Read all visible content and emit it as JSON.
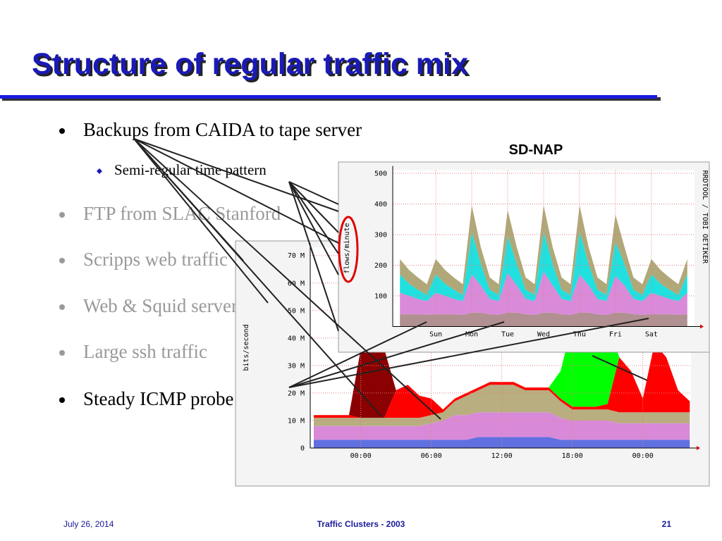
{
  "title": "Structure of regular traffic mix",
  "bullets": [
    {
      "text": "Backups from CAIDA to tape server",
      "sub": "Semi-regular time pattern"
    },
    {
      "text": "FTP from SLAC Stanford"
    },
    {
      "text": "Scripps web traffic"
    },
    {
      "text": "Web & Squid servers"
    },
    {
      "text": "Large ssh traffic"
    },
    {
      "text": "Steady ICMP probe"
    }
  ],
  "footer": {
    "date": "July 26, 2014",
    "center": "Traffic Clusters -  2003",
    "page": "21"
  },
  "chart_data": [
    {
      "type": "area",
      "title": "SD-NAP",
      "y_label": "flows/minute",
      "credit": "RRDTOOL / TOBI OETIKER",
      "x": [
        -0.5,
        -0.25,
        0,
        0.25,
        0.5,
        0.75,
        1,
        1.25,
        1.5,
        1.75,
        2,
        2.25,
        2.5,
        2.75,
        3,
        3.25,
        3.5,
        3.75,
        4,
        4.25,
        4.5,
        4.75,
        5,
        5.25,
        5.5,
        5.75,
        6,
        6.25,
        6.5,
        6.75,
        7,
        7.25,
        7.5
      ],
      "series": [
        {
          "color": "#b09090",
          "values": [
            40,
            40,
            40,
            38,
            40,
            40,
            40,
            38,
            45,
            45,
            40,
            38,
            45,
            45,
            40,
            38,
            45,
            45,
            40,
            38,
            45,
            45,
            40,
            38,
            45,
            45,
            40,
            38,
            40,
            40,
            40,
            38,
            40
          ]
        },
        {
          "color": "#d98ad9",
          "values": [
            70,
            60,
            50,
            45,
            70,
            60,
            50,
            45,
            125,
            90,
            50,
            45,
            130,
            90,
            50,
            45,
            135,
            90,
            50,
            45,
            125,
            90,
            50,
            45,
            120,
            90,
            50,
            45,
            70,
            60,
            50,
            45,
            70
          ]
        },
        {
          "color": "#20e0e0",
          "values": [
            60,
            40,
            30,
            20,
            60,
            40,
            30,
            20,
            140,
            70,
            30,
            20,
            120,
            70,
            30,
            20,
            130,
            70,
            30,
            20,
            140,
            70,
            30,
            20,
            110,
            70,
            30,
            20,
            60,
            40,
            30,
            20,
            60
          ]
        },
        {
          "color": "#b0a878",
          "values": [
            50,
            45,
            40,
            35,
            50,
            45,
            40,
            35,
            85,
            55,
            40,
            35,
            85,
            55,
            40,
            35,
            85,
            55,
            40,
            35,
            85,
            55,
            40,
            35,
            90,
            55,
            40,
            35,
            50,
            45,
            40,
            35,
            50
          ]
        }
      ],
      "xlim": [
        -0.7,
        7.7
      ],
      "ylim": [
        0,
        510
      ],
      "xticks": [
        {
          "value": 0.5,
          "label": "Sun"
        },
        {
          "value": 1.5,
          "label": "Mon"
        },
        {
          "value": 2.5,
          "label": "Tue"
        },
        {
          "value": 3.5,
          "label": "Wed"
        },
        {
          "value": 4.5,
          "label": "Thu"
        },
        {
          "value": 5.5,
          "label": "Fri"
        },
        {
          "value": 6.5,
          "label": "Sat"
        }
      ],
      "yticks": [
        100,
        200,
        300,
        400,
        500
      ],
      "grid": true
    },
    {
      "type": "area",
      "y_label": "bits/second",
      "x": [
        -4,
        -3,
        -2,
        -1,
        0,
        1,
        2,
        3,
        4,
        5,
        6,
        7,
        8,
        9,
        10,
        11,
        12,
        13,
        14,
        15,
        16,
        17,
        18,
        19,
        20,
        21,
        22,
        23,
        24,
        25,
        26,
        27,
        28
      ],
      "series": [
        {
          "color": "#6070e0",
          "values": [
            3000000,
            3000000,
            3000000,
            3000000,
            3000000,
            3000000,
            3000000,
            3000000,
            3000000,
            3000000,
            3000000,
            3000000,
            3000000,
            3000000,
            4000000,
            4000000,
            4000000,
            4000000,
            4000000,
            4000000,
            4000000,
            3000000,
            3000000,
            3000000,
            3000000,
            3000000,
            3000000,
            3000000,
            3000000,
            3000000,
            3000000,
            3000000,
            3000000
          ]
        },
        {
          "color": "#d88ad8",
          "values": [
            5000000,
            5000000,
            5000000,
            5000000,
            5000000,
            5000000,
            5000000,
            5000000,
            5000000,
            5000000,
            6000000,
            7000000,
            9000000,
            9000000,
            9000000,
            9000000,
            9000000,
            9000000,
            9000000,
            9000000,
            9000000,
            8000000,
            7000000,
            7000000,
            7000000,
            7000000,
            6000000,
            6000000,
            6000000,
            6000000,
            6000000,
            6000000,
            6000000
          ]
        },
        {
          "color": "#b8ae80",
          "values": [
            3000000,
            3000000,
            3000000,
            3000000,
            3000000,
            3000000,
            3000000,
            3000000,
            3000000,
            3000000,
            3000000,
            3000000,
            5000000,
            7000000,
            8000000,
            10000000,
            10000000,
            10000000,
            8000000,
            8000000,
            8000000,
            6000000,
            4000000,
            4000000,
            4000000,
            4000000,
            4000000,
            4000000,
            4000000,
            4000000,
            4000000,
            4000000,
            4000000
          ]
        },
        {
          "color": "#ff0000",
          "values": [
            1000000,
            1000000,
            1000000,
            1000000,
            0,
            0,
            0,
            10000000,
            12000000,
            8000000,
            6000000,
            1000000,
            1000000,
            1000000,
            1000000,
            1000000,
            1000000,
            1000000,
            1000000,
            1000000,
            1000000,
            1000000,
            1000000,
            1000000,
            1000000,
            2000000,
            20000000,
            15000000,
            5000000,
            25000000,
            20000000,
            8000000,
            4000000
          ]
        },
        {
          "color": "#8b0000",
          "values": [
            0,
            0,
            0,
            0,
            25000000,
            25000000,
            25000000,
            0,
            0,
            0,
            0,
            0,
            0,
            0,
            0,
            0,
            0,
            0,
            0,
            0,
            0,
            0,
            0,
            0,
            0,
            0,
            0,
            0,
            0,
            0,
            0,
            0,
            0
          ]
        },
        {
          "color": "#00ff00",
          "values": [
            0,
            0,
            0,
            0,
            0,
            0,
            0,
            0,
            0,
            0,
            0,
            0,
            0,
            0,
            0,
            0,
            0,
            0,
            0,
            0,
            0,
            10000000,
            30000000,
            35000000,
            25000000,
            30000000,
            0,
            0,
            0,
            0,
            0,
            0,
            0
          ]
        }
      ],
      "xlim": [
        -4.3,
        28.1
      ],
      "ylim": [
        0,
        73000000
      ],
      "xticks": [
        {
          "value": 0,
          "label": "00:00"
        },
        {
          "value": 6,
          "label": "06:00"
        },
        {
          "value": 12,
          "label": "12:00"
        },
        {
          "value": 18,
          "label": "18:00"
        },
        {
          "value": 24,
          "label": "00:00"
        }
      ],
      "yticks": [
        0,
        {
          "value": 10000000,
          "label": "10 M"
        },
        {
          "value": 20000000,
          "label": "20 M"
        },
        {
          "value": 30000000,
          "label": "30 M"
        },
        {
          "value": 40000000,
          "label": "40 M"
        },
        {
          "value": 50000000,
          "label": "50 M"
        },
        {
          "value": 60000000,
          "label": "60 M"
        },
        {
          "value": 70000000,
          "label": "70 M"
        }
      ],
      "grid": true
    }
  ]
}
